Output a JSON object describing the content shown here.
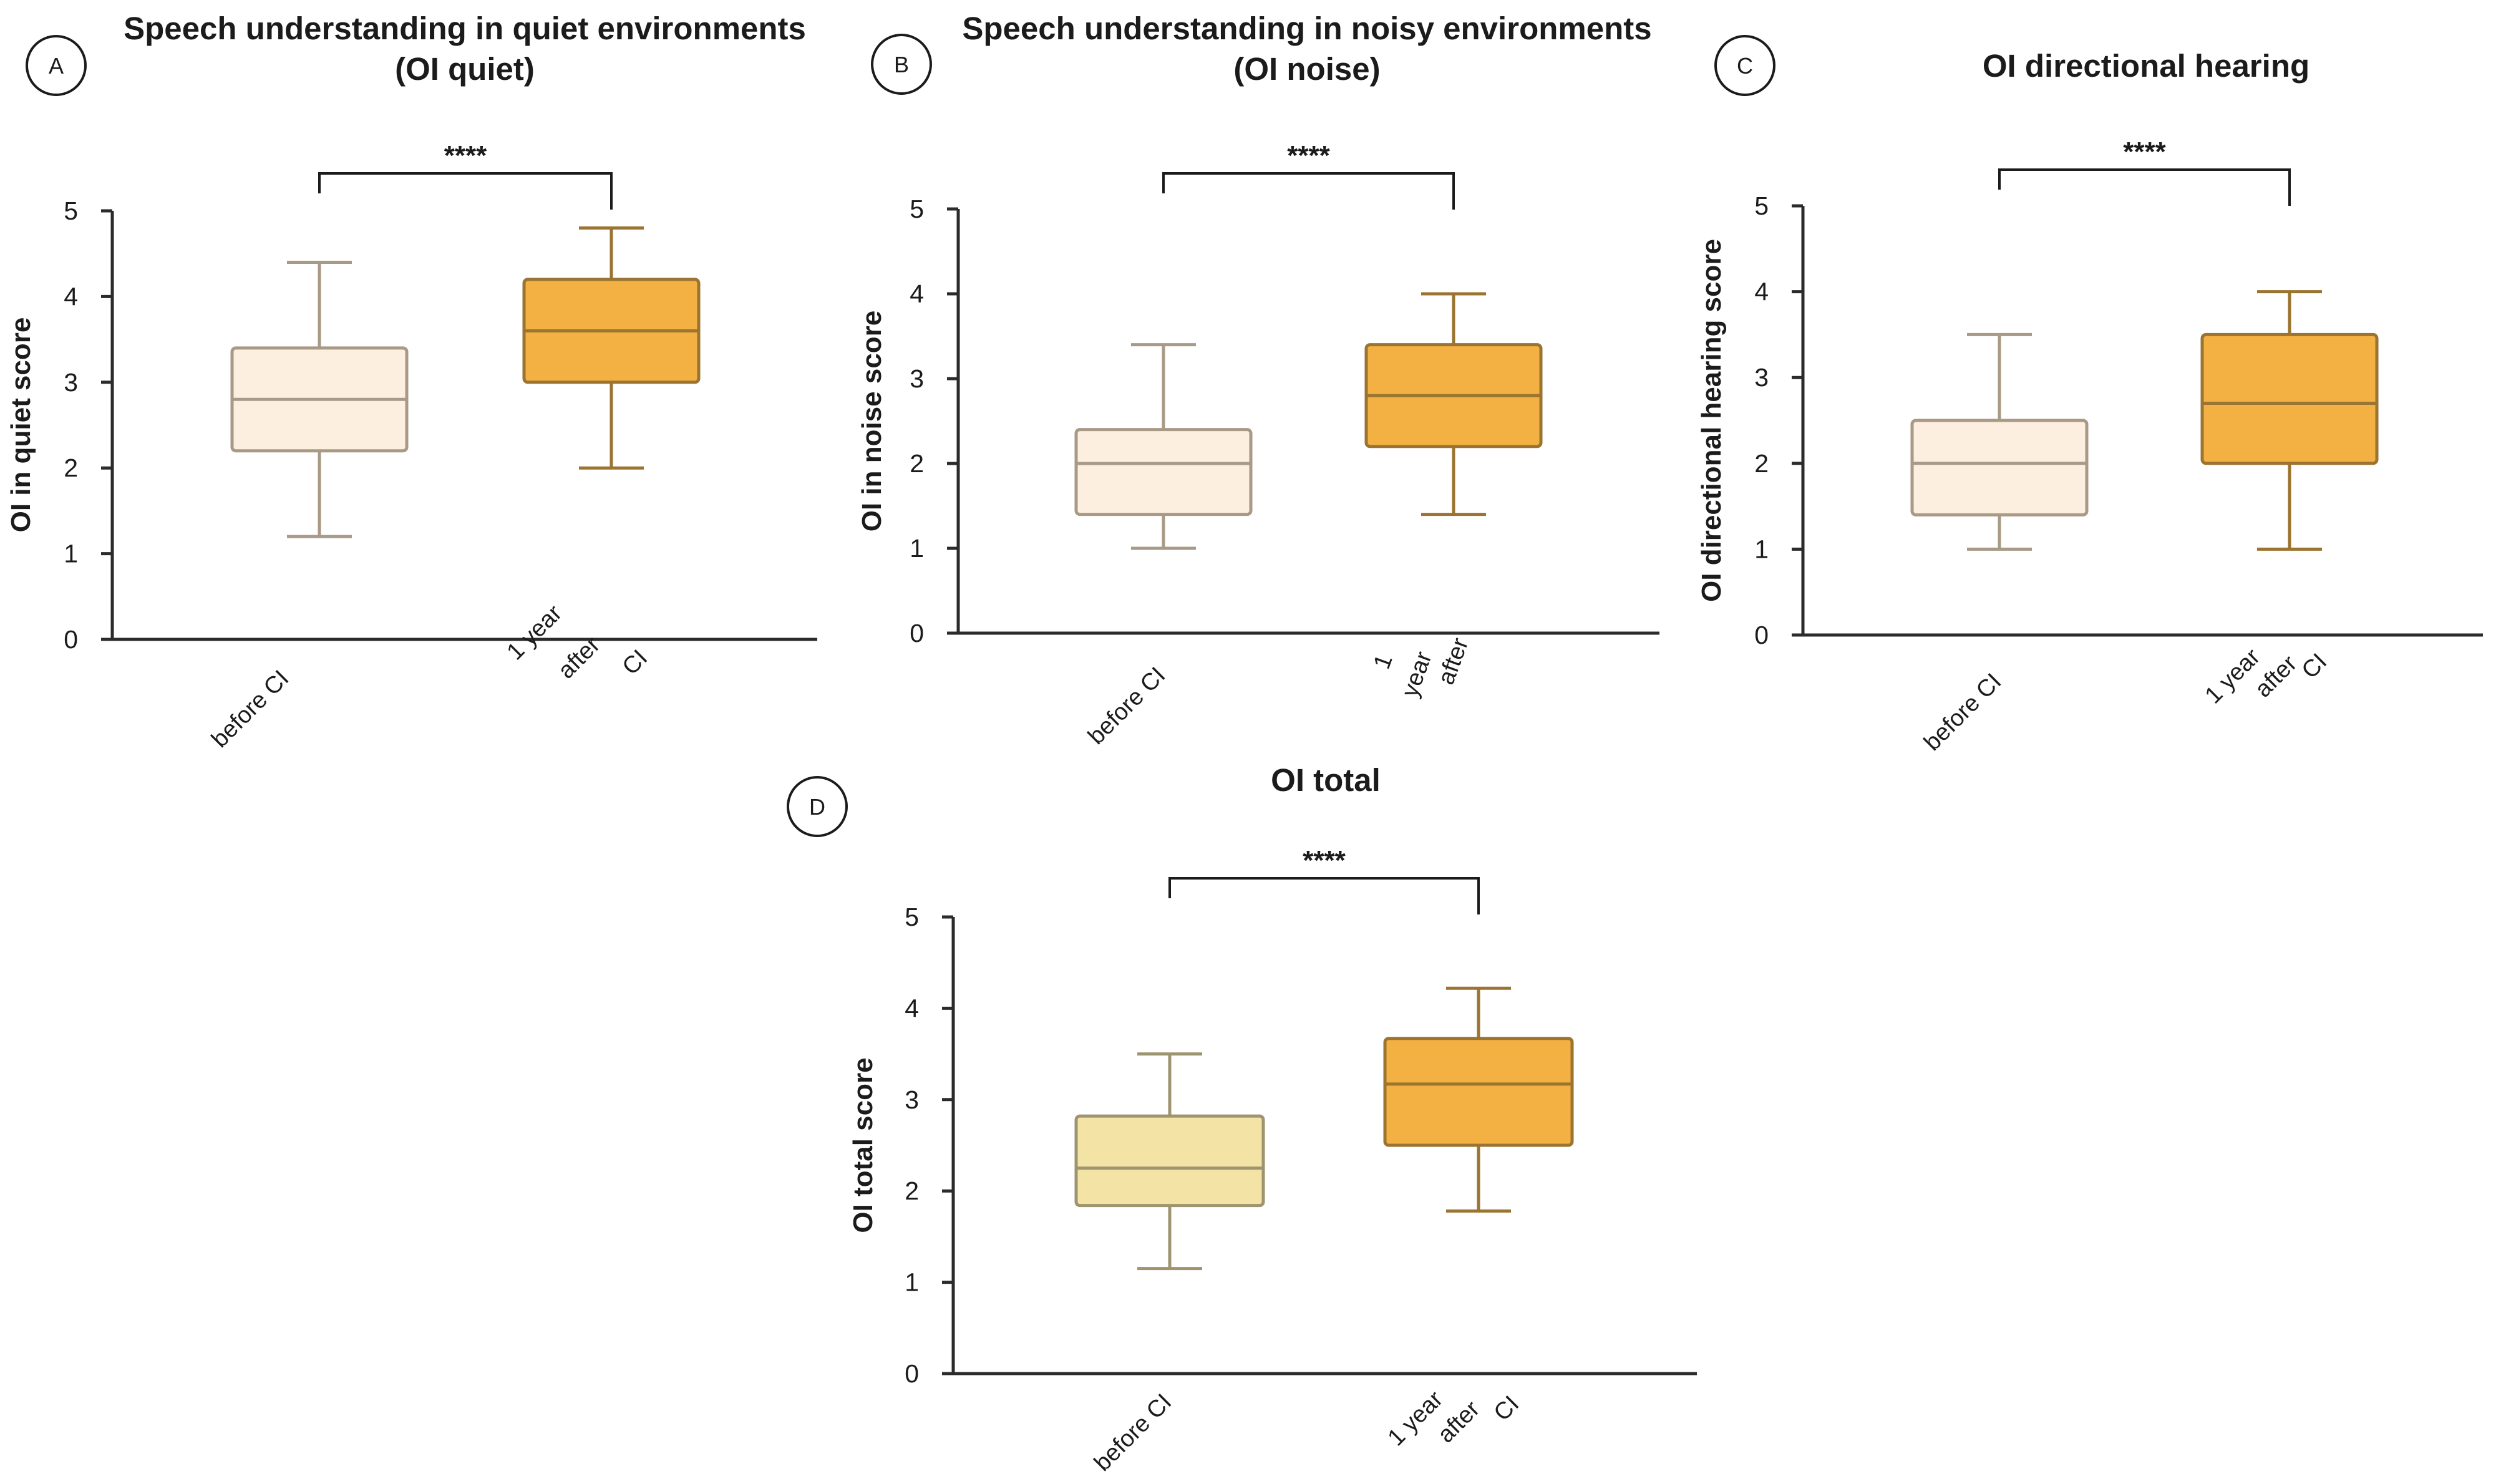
{
  "chart_data": [
    {
      "panel": "A",
      "type": "box",
      "title": [
        "Speech understanding  in quiet environments",
        "(OI quiet)"
      ],
      "ylabel": "OI in quiet score",
      "ylim": [
        0,
        5
      ],
      "yticks": [
        "0",
        "1",
        "2",
        "3",
        "4",
        "5"
      ],
      "categories": [
        [
          "before CI"
        ],
        [
          "1 year",
          "after",
          "CI"
        ]
      ],
      "boxes": [
        {
          "min": 1.2,
          "q1": 2.2,
          "median": 2.8,
          "q3": 3.4,
          "max": 4.4,
          "fill": "#fdefdf",
          "stroke": "#a89a86"
        },
        {
          "min": 2.0,
          "q1": 3.0,
          "median": 3.6,
          "q3": 4.2,
          "max": 4.8,
          "fill": "#f2b142",
          "stroke": "#9a7430"
        }
      ],
      "significance": "****"
    },
    {
      "panel": "B",
      "type": "box",
      "title": [
        "Speech understanding  in noisy environments",
        "(OI noise)"
      ],
      "ylabel": "OI in noise score",
      "ylim": [
        0,
        5
      ],
      "yticks": [
        "0",
        "1",
        "2",
        "3",
        "4",
        "5"
      ],
      "categories": [
        [
          "before CI"
        ],
        [
          "1",
          "year",
          "after"
        ]
      ],
      "boxes": [
        {
          "min": 1.0,
          "q1": 1.4,
          "median": 2.0,
          "q3": 2.4,
          "max": 3.4,
          "fill": "#fdefdf",
          "stroke": "#a89a86"
        },
        {
          "min": 1.4,
          "q1": 2.2,
          "median": 2.8,
          "q3": 3.4,
          "max": 4.0,
          "fill": "#f2b142",
          "stroke": "#9a7430"
        }
      ],
      "significance": "****"
    },
    {
      "panel": "C",
      "type": "box",
      "title": [
        "OI directional hearing"
      ],
      "ylabel": "OI directional hearing score",
      "ylim": [
        0,
        5
      ],
      "yticks": [
        "0",
        "1",
        "2",
        "3",
        "4",
        "5"
      ],
      "categories": [
        [
          "before CI"
        ],
        [
          "1 year",
          "after",
          "CI"
        ]
      ],
      "boxes": [
        {
          "min": 1.0,
          "q1": 1.4,
          "median": 2.0,
          "q3": 2.5,
          "max": 3.5,
          "fill": "#fdefdf",
          "stroke": "#a89a86"
        },
        {
          "min": 1.0,
          "q1": 2.0,
          "median": 2.7,
          "q3": 3.5,
          "max": 4.0,
          "fill": "#f2b142",
          "stroke": "#9a7430"
        }
      ],
      "significance": "****"
    },
    {
      "panel": "D",
      "type": "box",
      "title": [
        "OI total"
      ],
      "ylabel": "OI total score",
      "ylim": [
        0,
        5
      ],
      "yticks": [
        "0",
        "1",
        "2",
        "3",
        "4",
        "5"
      ],
      "categories": [
        [
          "before CI"
        ],
        [
          "1 year",
          "after",
          "CI"
        ]
      ],
      "boxes": [
        {
          "min": 1.15,
          "q1": 1.84,
          "median": 2.25,
          "q3": 2.82,
          "max": 3.5,
          "fill": "#f3e4a6",
          "stroke": "#9e9470"
        },
        {
          "min": 1.78,
          "q1": 2.5,
          "median": 3.17,
          "q3": 3.67,
          "max": 4.22,
          "fill": "#f2b142",
          "stroke": "#9a7430"
        }
      ],
      "significance": "****"
    }
  ]
}
